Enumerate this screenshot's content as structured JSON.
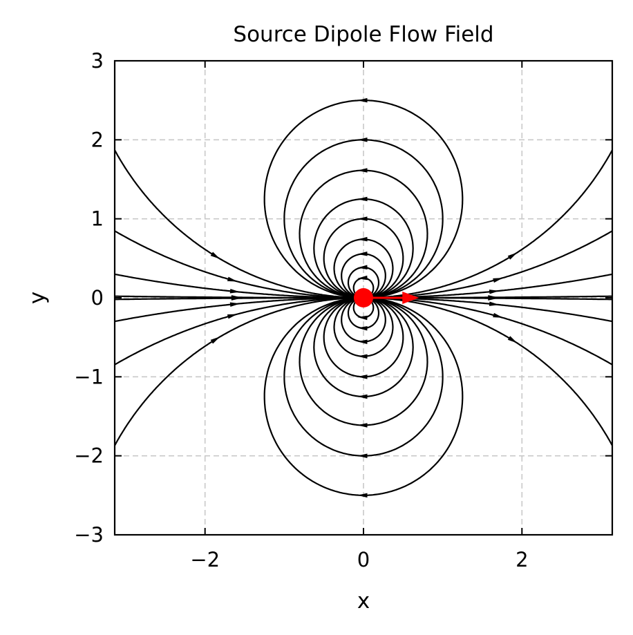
{
  "chart_data": {
    "type": "streamplot",
    "title": "Source Dipole Flow Field",
    "xlabel": "x",
    "ylabel": "y",
    "xlim": [
      -3.14,
      3.14
    ],
    "ylim": [
      -3,
      3
    ],
    "xticks": [
      -2,
      0,
      2
    ],
    "yticks": [
      -3,
      -2,
      -1,
      0,
      1,
      2,
      3
    ],
    "xtick_labels": [
      "−2",
      "0",
      "2"
    ],
    "ytick_labels": [
      "−3",
      "−2",
      "−1",
      "0",
      "1",
      "2",
      "3"
    ],
    "grid": true,
    "dipole": {
      "x": 0,
      "y": 0,
      "moment_x": 0.7,
      "moment_y": 0,
      "color": "#ff0000"
    },
    "stream_color": "#000000",
    "grid_color": "#c8c8c8"
  }
}
